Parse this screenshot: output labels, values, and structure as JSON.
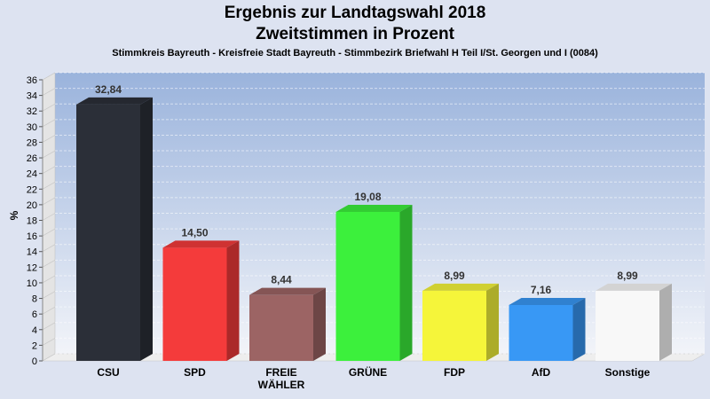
{
  "header": {
    "title_line1": "Ergebnis zur Landtagswahl 2018",
    "title_line2": "Zweitstimmen in Prozent",
    "subtitle": "Stimmkreis Bayreuth - Kreisfreie Stadt Bayreuth - Stimmbezirk Briefwahl H Teil I/St. Georgen und I (0084)"
  },
  "chart_data": {
    "type": "bar",
    "title": "Ergebnis zur Landtagswahl 2018 Zweitstimmen in Prozent",
    "subtitle": "Stimmkreis Bayreuth - Kreisfreie Stadt Bayreuth - Stimmbezirk Briefwahl H Teil I/St. Georgen und I (0084)",
    "xlabel": "",
    "ylabel": "%",
    "ylim": [
      0,
      36
    ],
    "yticks": [
      0,
      2,
      4,
      6,
      8,
      10,
      12,
      14,
      16,
      18,
      20,
      22,
      24,
      26,
      28,
      30,
      32,
      34,
      36
    ],
    "grid": true,
    "categories": [
      "CSU",
      "SPD",
      "FREIE WÄHLER",
      "GRÜNE",
      "FDP",
      "AfD",
      "Sonstige"
    ],
    "category_lines": [
      [
        "CSU"
      ],
      [
        "SPD"
      ],
      [
        "FREIE",
        "WÄHLER"
      ],
      [
        "GRÜNE"
      ],
      [
        "FDP"
      ],
      [
        "AfD"
      ],
      [
        "Sonstige"
      ]
    ],
    "values": [
      32.84,
      14.5,
      8.44,
      19.08,
      8.99,
      7.16,
      8.99
    ],
    "value_labels": [
      "32,84",
      "14,50",
      "8,44",
      "19,08",
      "8,99",
      "7,16",
      "8,99"
    ],
    "colors": [
      "#2b2f38",
      "#f43b3b",
      "#9c6464",
      "#3cf03c",
      "#f5f53a",
      "#3898f5",
      "#f8f8f8"
    ]
  }
}
